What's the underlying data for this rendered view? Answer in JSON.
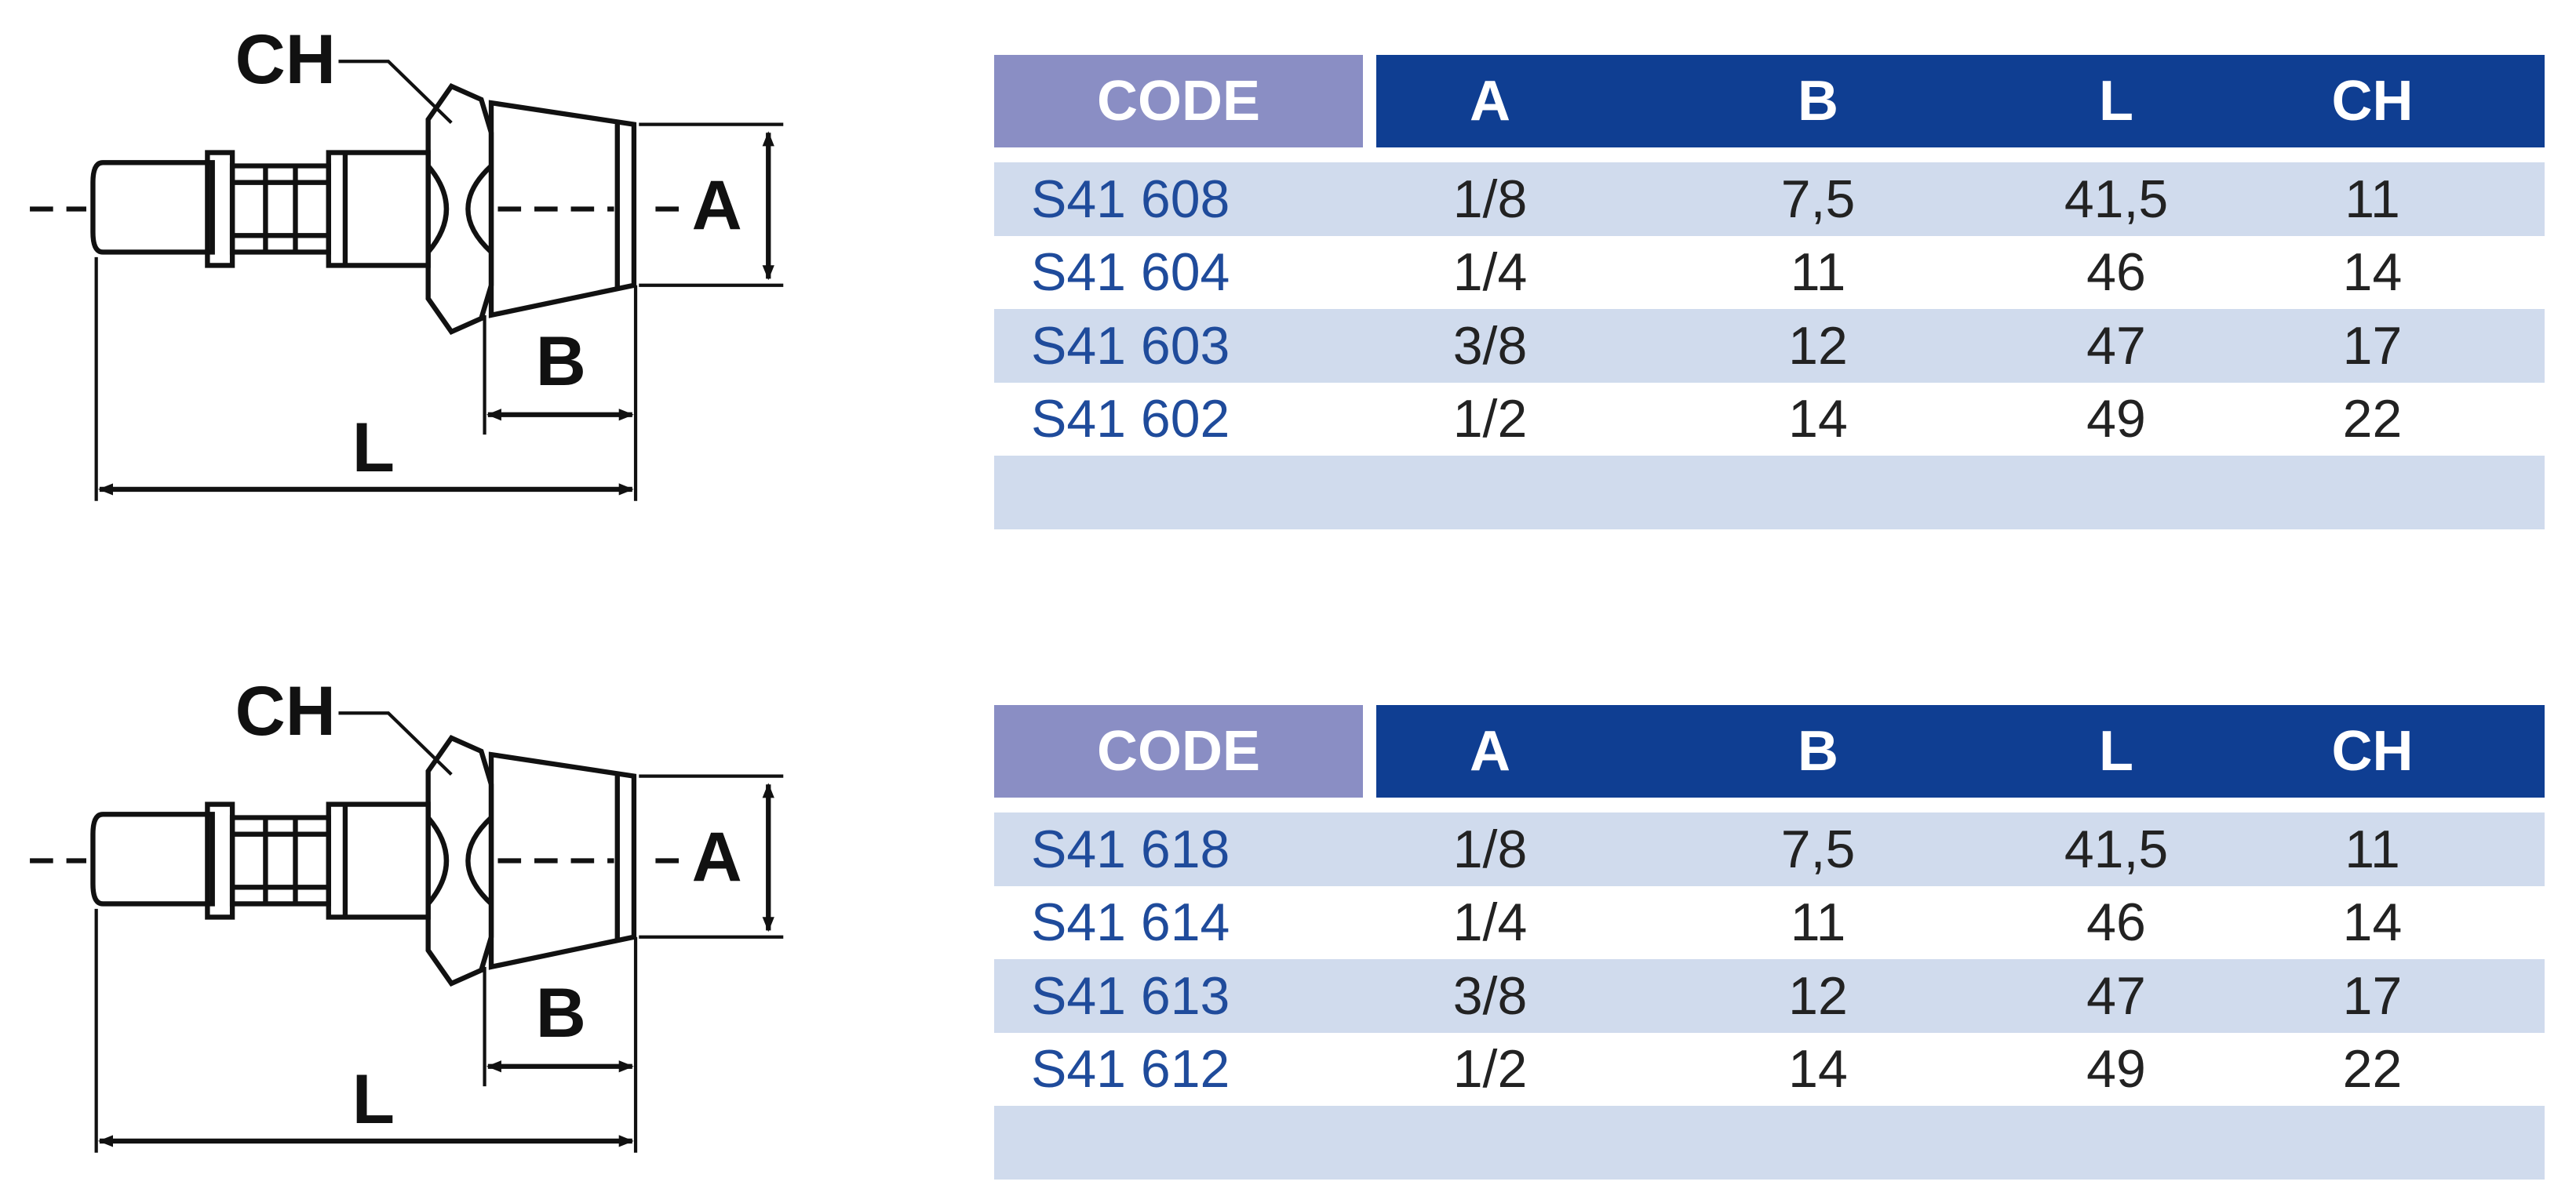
{
  "sections": [
    {
      "drawing": {
        "ch": "CH",
        "a": "A",
        "b": "B",
        "l": "L"
      },
      "table": {
        "headers": [
          "CODE",
          "A",
          "B",
          "L",
          "CH"
        ],
        "rows": [
          [
            "S41 608",
            "1/8",
            "7,5",
            "41,5",
            "11"
          ],
          [
            "S41 604",
            "1/4",
            "11",
            "46",
            "14"
          ],
          [
            "S41 603",
            "3/8",
            "12",
            "47",
            "17"
          ],
          [
            "S41 602",
            "1/2",
            "14",
            "49",
            "22"
          ]
        ]
      }
    },
    {
      "drawing": {
        "ch": "CH",
        "a": "A",
        "b": "B",
        "l": "L"
      },
      "table": {
        "headers": [
          "CODE",
          "A",
          "B",
          "L",
          "CH"
        ],
        "rows": [
          [
            "S41 618",
            "1/8",
            "7,5",
            "41,5",
            "11"
          ],
          [
            "S41 614",
            "1/4",
            "11",
            "46",
            "14"
          ],
          [
            "S41 613",
            "3/8",
            "12",
            "47",
            "17"
          ],
          [
            "S41 612",
            "1/2",
            "14",
            "49",
            "22"
          ]
        ]
      }
    }
  ]
}
